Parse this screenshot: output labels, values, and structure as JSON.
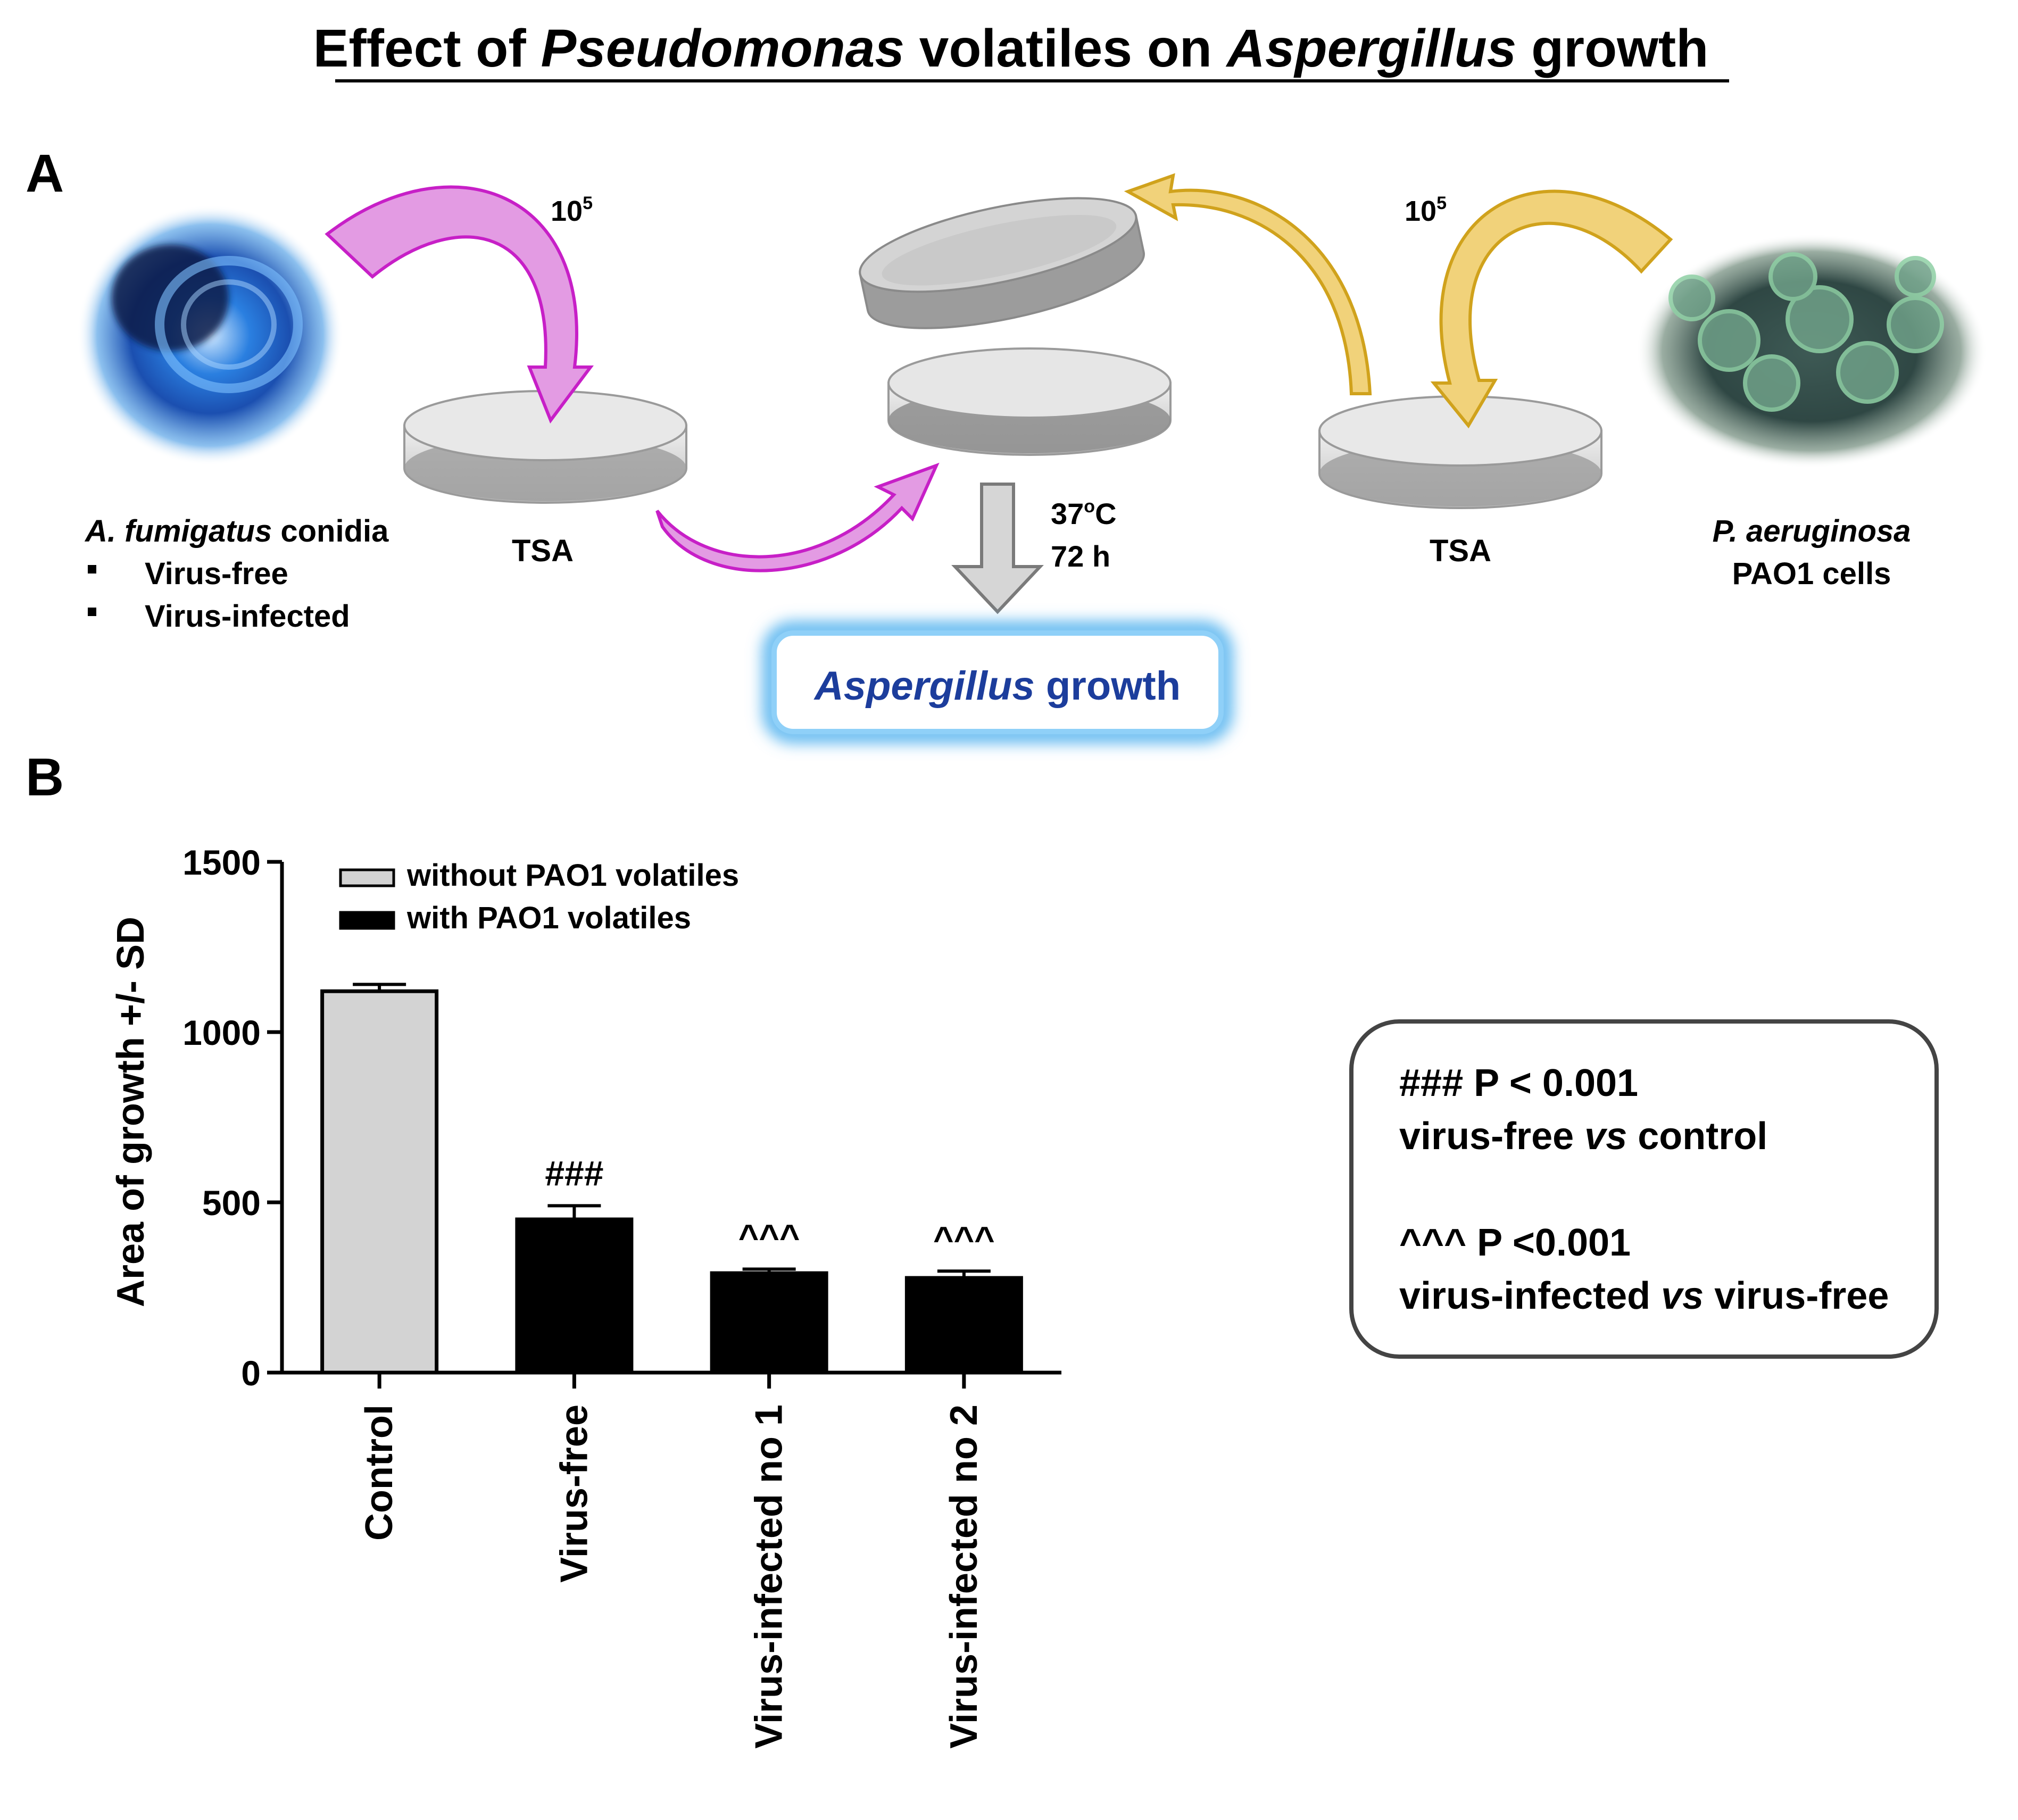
{
  "title": {
    "parts": [
      {
        "text": "Effect of ",
        "italic": false
      },
      {
        "text": "Pseudomonas",
        "italic": true
      },
      {
        "text": " volatiles on ",
        "italic": false
      },
      {
        "text": "Aspergillus",
        "italic": true
      },
      {
        "text": " growth",
        "italic": false
      }
    ]
  },
  "panel_a": {
    "letter": "A",
    "left_inoculum": {
      "base": "10",
      "exp": "5"
    },
    "right_inoculum": {
      "base": "10",
      "exp": "5"
    },
    "left_plate_label": "TSA",
    "right_plate_label": "TSA",
    "fungus_label": {
      "species": "A. fumigatus",
      "rest": " conidia"
    },
    "fungus_bullets": [
      "Virus-free",
      "Virus-infected"
    ],
    "bacteria_label": {
      "species": "P. aeruginosa",
      "line2": "PAO1 cells"
    },
    "incubation": {
      "temp_base": "37",
      "temp_sup": "o",
      "temp_unit": "C",
      "time": "72 h"
    },
    "result_box": {
      "italic": "Aspergillus",
      "rest": " growth"
    },
    "colors": {
      "magenta": "#c71fc7",
      "magenta_fill": "#d98ad9",
      "gold": "#d0a21c",
      "gold_fill": "#f1d27a",
      "glow": "#5fb8f0",
      "dark_blue": "#1c3d9c"
    }
  },
  "panel_b": {
    "letter": "B",
    "legend_box": {
      "line1_parts": [
        {
          "text": "### P < 0.001",
          "italic": false
        }
      ],
      "line2_parts": [
        {
          "text": "virus-free ",
          "italic": false
        },
        {
          "text": "vs",
          "italic": true
        },
        {
          "text": " control",
          "italic": false
        }
      ],
      "line3_parts": [
        {
          "text": "^^^ P <0.001",
          "italic": false
        }
      ],
      "line4_parts": [
        {
          "text": "virus-infected ",
          "italic": false
        },
        {
          "text": "vs",
          "italic": true
        },
        {
          "text": " virus-free",
          "italic": false
        }
      ]
    }
  },
  "chart_data": {
    "type": "bar",
    "ylabel": "Area of growth +/- SD",
    "xlabel": "",
    "ylim": [
      0,
      1500
    ],
    "yticks": [
      0,
      500,
      1000,
      1500
    ],
    "categories": [
      "Control",
      "Virus-free",
      "Virus-infected no 1",
      "Virus-infected no 2"
    ],
    "values": [
      1120,
      450,
      292,
      278
    ],
    "errors": [
      20,
      40,
      12,
      20
    ],
    "bar_series": [
      "without PAO1 volatiles",
      "with PAO1 volatiles",
      "with PAO1 volatiles",
      "with PAO1 volatiles"
    ],
    "annotations": [
      "",
      "###",
      "^^^",
      "^^^"
    ],
    "series": [
      {
        "name": "without PAO1 volatiles",
        "color": "#d3d3d3"
      },
      {
        "name": "with PAO1 volatiles",
        "color": "#000000"
      }
    ],
    "legend_position": "top-left",
    "grid": false
  }
}
